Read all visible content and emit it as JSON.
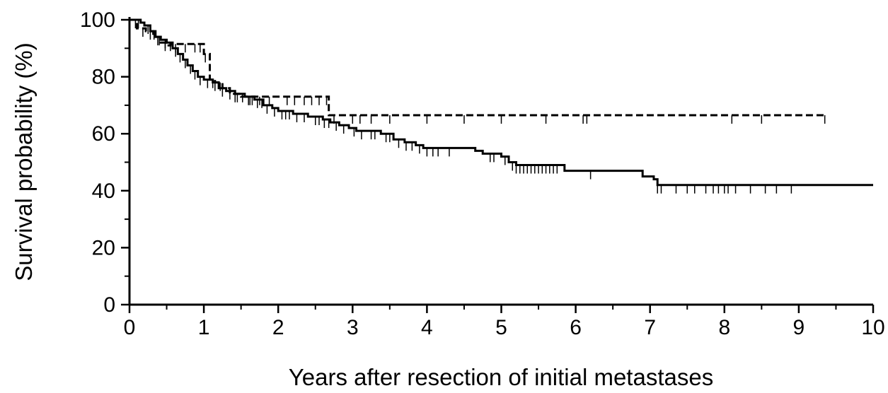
{
  "chart_data": {
    "type": "line",
    "title": "",
    "xlabel": "Years after resection of initial metastases",
    "ylabel": "Survival probability (%)",
    "xlim": [
      0,
      10
    ],
    "ylim": [
      0,
      100
    ],
    "x_ticks": [
      0,
      1,
      2,
      3,
      4,
      5,
      6,
      7,
      8,
      9,
      10
    ],
    "y_ticks": [
      0,
      20,
      40,
      60,
      80,
      100
    ],
    "x_tick_labels": [
      "0",
      "1",
      "2",
      "3",
      "4",
      "5",
      "6",
      "7",
      "8",
      "9",
      "10"
    ],
    "y_tick_labels": [
      "0",
      "20",
      "40",
      "60",
      "80",
      "100"
    ],
    "grid": false,
    "legend": "none",
    "step": true,
    "series": [
      {
        "style": "solid",
        "color": "#000000",
        "steps": [
          [
            0,
            100
          ],
          [
            0.15,
            99
          ],
          [
            0.2,
            98
          ],
          [
            0.28,
            96
          ],
          [
            0.35,
            94
          ],
          [
            0.42,
            93
          ],
          [
            0.5,
            92
          ],
          [
            0.58,
            90
          ],
          [
            0.65,
            88
          ],
          [
            0.72,
            86
          ],
          [
            0.78,
            84
          ],
          [
            0.85,
            82
          ],
          [
            0.92,
            80
          ],
          [
            1.0,
            79
          ],
          [
            1.12,
            78
          ],
          [
            1.2,
            76
          ],
          [
            1.3,
            75
          ],
          [
            1.42,
            74
          ],
          [
            1.55,
            73
          ],
          [
            1.68,
            72
          ],
          [
            1.8,
            70
          ],
          [
            1.92,
            69
          ],
          [
            2.0,
            68
          ],
          [
            2.2,
            67
          ],
          [
            2.4,
            66
          ],
          [
            2.6,
            65
          ],
          [
            2.7,
            64
          ],
          [
            2.82,
            63
          ],
          [
            2.95,
            62
          ],
          [
            3.05,
            61
          ],
          [
            3.38,
            60
          ],
          [
            3.55,
            58
          ],
          [
            3.7,
            57
          ],
          [
            3.85,
            56
          ],
          [
            3.95,
            55
          ],
          [
            4.65,
            54
          ],
          [
            4.75,
            53
          ],
          [
            5.0,
            52
          ],
          [
            5.1,
            50
          ],
          [
            5.2,
            49
          ],
          [
            5.85,
            47
          ],
          [
            6.9,
            45
          ],
          [
            7.05,
            44
          ],
          [
            7.1,
            42
          ],
          [
            10.0,
            42
          ]
        ],
        "censor_x": [
          0.12,
          0.25,
          0.33,
          0.4,
          0.48,
          0.55,
          0.62,
          0.68,
          0.75,
          0.82,
          0.88,
          0.95,
          1.05,
          1.15,
          1.25,
          1.35,
          1.45,
          1.52,
          1.6,
          1.65,
          1.72,
          1.78,
          1.85,
          1.95,
          2.05,
          2.1,
          2.15,
          2.25,
          2.35,
          2.5,
          2.55,
          2.62,
          2.68,
          2.78,
          2.88,
          3.02,
          3.12,
          3.25,
          3.3,
          3.45,
          3.5,
          3.62,
          3.72,
          3.8,
          3.9,
          4.0,
          4.08,
          4.15,
          4.3,
          4.85,
          4.9,
          5.05,
          5.15,
          5.2,
          5.25,
          5.3,
          5.35,
          5.4,
          5.45,
          5.5,
          5.55,
          5.6,
          5.65,
          5.7,
          5.75,
          6.2,
          7.1,
          7.15,
          7.35,
          7.5,
          7.6,
          7.75,
          7.85,
          7.92,
          8.0,
          8.05,
          8.15,
          8.35,
          8.55,
          8.7,
          8.9
        ]
      },
      {
        "style": "dashed",
        "color": "#000000",
        "steps": [
          [
            0,
            100
          ],
          [
            0.1,
            97
          ],
          [
            0.22,
            96
          ],
          [
            0.32,
            94
          ],
          [
            0.42,
            92
          ],
          [
            0.5,
            91
          ],
          [
            0.55,
            91.5
          ],
          [
            1.0,
            88
          ],
          [
            1.08,
            79
          ],
          [
            1.15,
            78
          ],
          [
            1.25,
            76
          ],
          [
            1.35,
            74
          ],
          [
            1.5,
            73
          ],
          [
            2.68,
            66.5
          ],
          [
            9.35,
            66.5
          ]
        ],
        "censor_x": [
          0.08,
          0.18,
          0.28,
          0.38,
          0.48,
          0.62,
          0.75,
          0.88,
          0.95,
          1.02,
          1.12,
          1.22,
          1.42,
          1.62,
          1.75,
          1.88,
          2.12,
          2.22,
          2.35,
          2.45,
          2.55,
          2.65,
          2.75,
          3.0,
          3.1,
          3.25,
          3.5,
          4.0,
          4.5,
          5.0,
          5.6,
          6.1,
          6.15,
          8.1,
          8.5,
          9.35
        ]
      }
    ]
  }
}
